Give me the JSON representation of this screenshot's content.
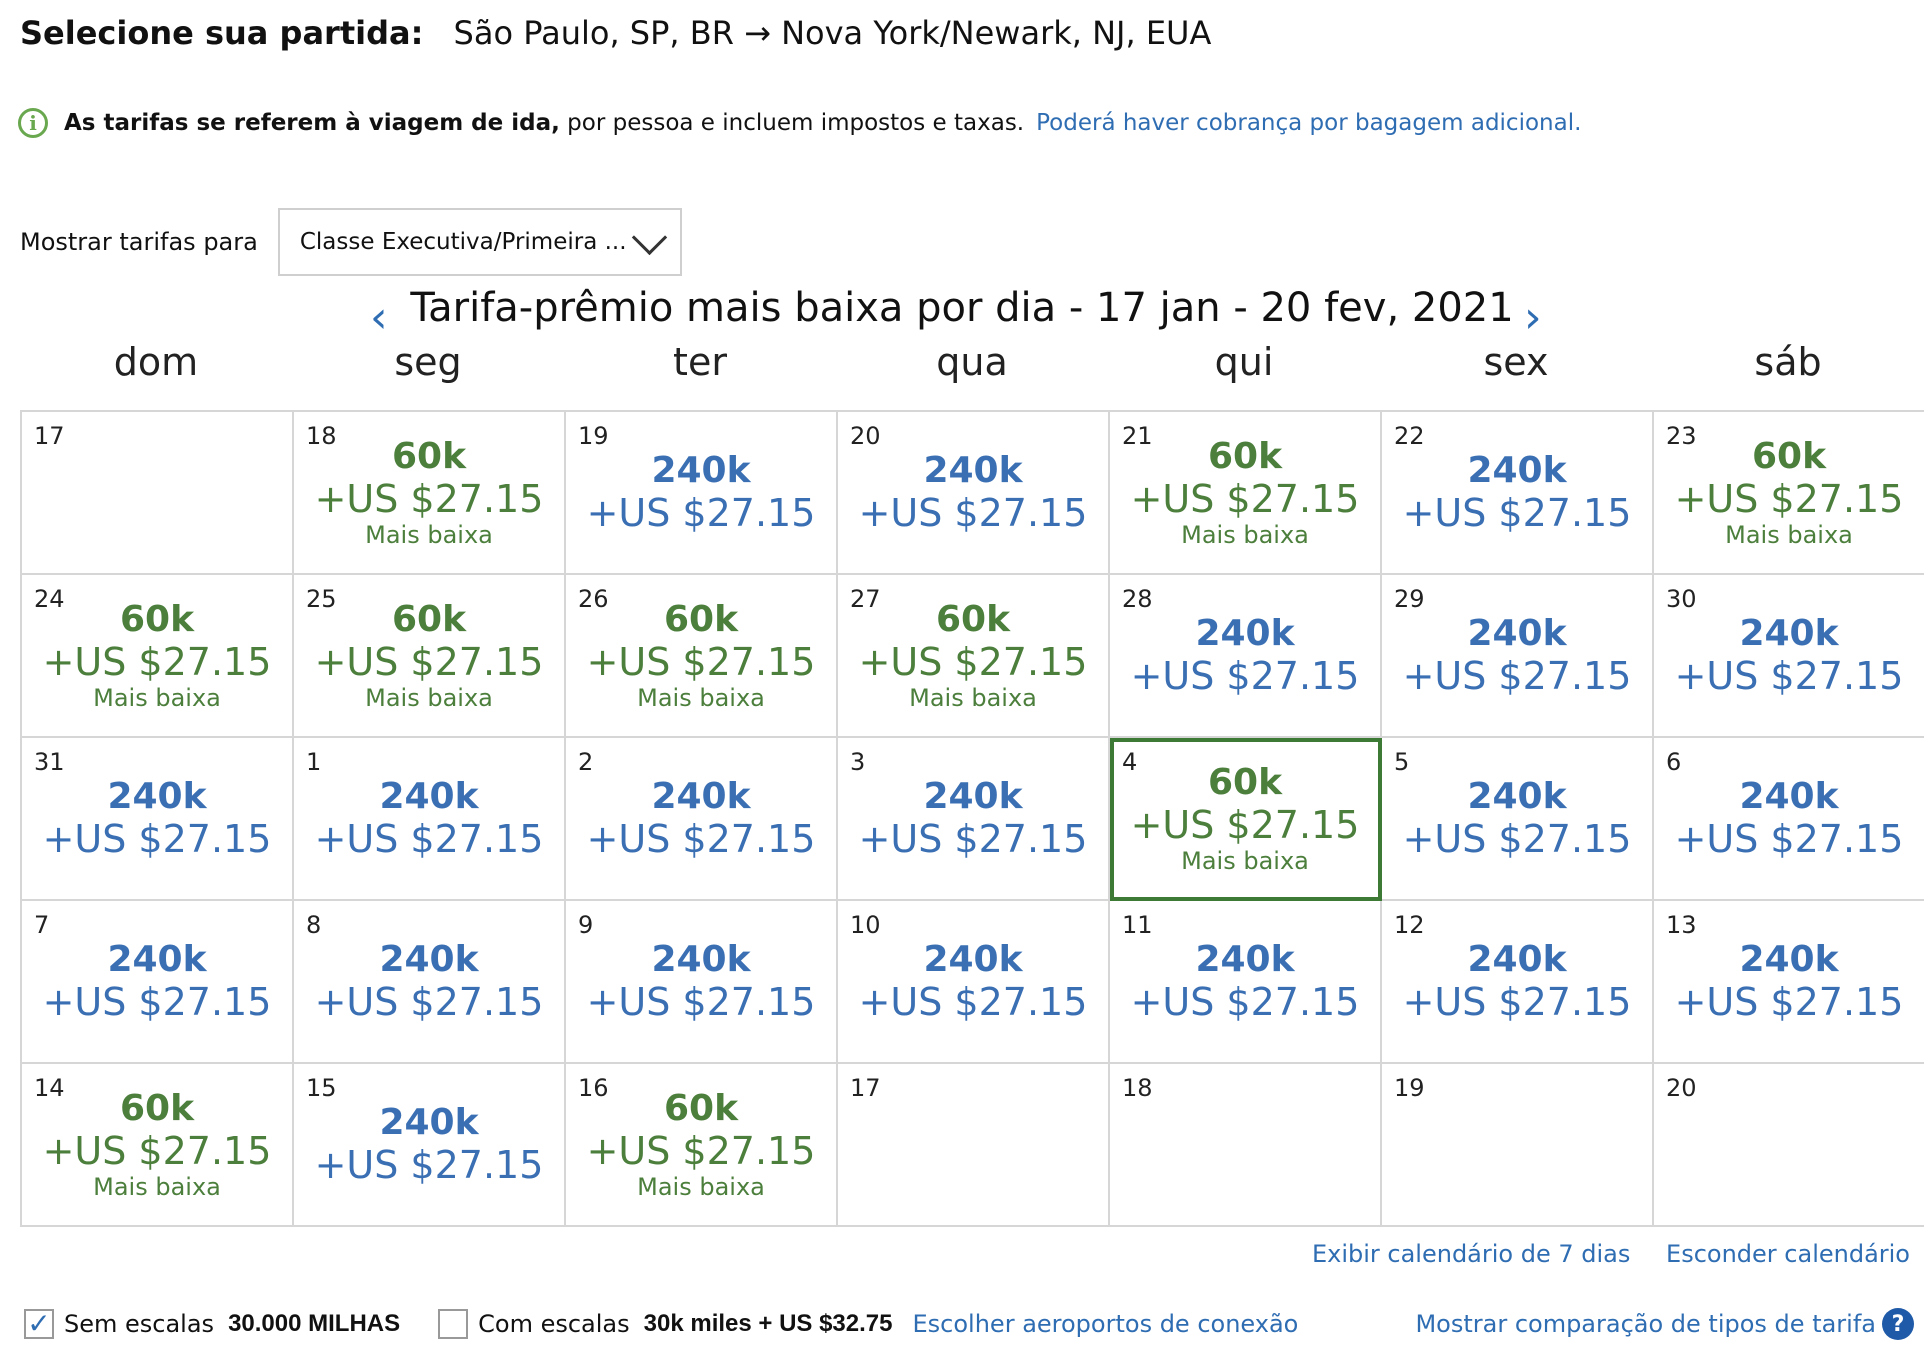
{
  "header": {
    "label": "Selecione sua partida:",
    "route": "São Paulo, SP, BR → Nova York/Newark, NJ, EUA"
  },
  "info": {
    "bold_text": "As tarifas se referem à viagem de ida,",
    "text": "por pessoa e incluem impostos e taxas.",
    "link": "Poderá haver cobrança por bagagem adicional."
  },
  "filter": {
    "label": "Mostrar tarifas para",
    "selected": "Classe Executiva/Primeira ..."
  },
  "calendar": {
    "title": "Tarifa-prêmio mais baixa por dia - 17 jan - 20 fev, 2021",
    "prev": "‹",
    "next": "›",
    "weekdays": [
      "dom",
      "seg",
      "ter",
      "qua",
      "qui",
      "sex",
      "sáb"
    ],
    "lowest_label": "Mais baixa",
    "selected_day": "4",
    "days": [
      {
        "day": "17"
      },
      {
        "day": "18",
        "miles": "60k",
        "cash": "+US $27.15",
        "lowest": true
      },
      {
        "day": "19",
        "miles": "240k",
        "cash": "+US $27.15"
      },
      {
        "day": "20",
        "miles": "240k",
        "cash": "+US $27.15"
      },
      {
        "day": "21",
        "miles": "60k",
        "cash": "+US $27.15",
        "lowest": true
      },
      {
        "day": "22",
        "miles": "240k",
        "cash": "+US $27.15"
      },
      {
        "day": "23",
        "miles": "60k",
        "cash": "+US $27.15",
        "lowest": true
      },
      {
        "day": "24",
        "miles": "60k",
        "cash": "+US $27.15",
        "lowest": true
      },
      {
        "day": "25",
        "miles": "60k",
        "cash": "+US $27.15",
        "lowest": true
      },
      {
        "day": "26",
        "miles": "60k",
        "cash": "+US $27.15",
        "lowest": true
      },
      {
        "day": "27",
        "miles": "60k",
        "cash": "+US $27.15",
        "lowest": true
      },
      {
        "day": "28",
        "miles": "240k",
        "cash": "+US $27.15"
      },
      {
        "day": "29",
        "miles": "240k",
        "cash": "+US $27.15"
      },
      {
        "day": "30",
        "miles": "240k",
        "cash": "+US $27.15"
      },
      {
        "day": "31",
        "miles": "240k",
        "cash": "+US $27.15"
      },
      {
        "day": "1",
        "miles": "240k",
        "cash": "+US $27.15"
      },
      {
        "day": "2",
        "miles": "240k",
        "cash": "+US $27.15"
      },
      {
        "day": "3",
        "miles": "240k",
        "cash": "+US $27.15"
      },
      {
        "day": "4",
        "miles": "60k",
        "cash": "+US $27.15",
        "lowest": true,
        "selected": true
      },
      {
        "day": "5",
        "miles": "240k",
        "cash": "+US $27.15"
      },
      {
        "day": "6",
        "miles": "240k",
        "cash": "+US $27.15"
      },
      {
        "day": "7",
        "miles": "240k",
        "cash": "+US $27.15"
      },
      {
        "day": "8",
        "miles": "240k",
        "cash": "+US $27.15"
      },
      {
        "day": "9",
        "miles": "240k",
        "cash": "+US $27.15"
      },
      {
        "day": "10",
        "miles": "240k",
        "cash": "+US $27.15"
      },
      {
        "day": "11",
        "miles": "240k",
        "cash": "+US $27.15"
      },
      {
        "day": "12",
        "miles": "240k",
        "cash": "+US $27.15"
      },
      {
        "day": "13",
        "miles": "240k",
        "cash": "+US $27.15"
      },
      {
        "day": "14",
        "miles": "60k",
        "cash": "+US $27.15",
        "lowest": true
      },
      {
        "day": "15",
        "miles": "240k",
        "cash": "+US $27.15"
      },
      {
        "day": "16",
        "miles": "60k",
        "cash": "+US $27.15",
        "lowest": true
      },
      {
        "day": "17"
      },
      {
        "day": "18"
      },
      {
        "day": "19"
      },
      {
        "day": "20"
      }
    ]
  },
  "links": {
    "seven_day": "Exibir calendário de 7 dias",
    "hide": "Esconder calendário"
  },
  "options": {
    "nonstop_label": "Sem escalas",
    "nonstop_checked": true,
    "nonstop_price": "30.000 MILHAS",
    "connect_label": "Com escalas",
    "connect_checked": false,
    "connect_price": "30k miles + US $32.75",
    "connect_link": "Escolher aeroportos de conexão",
    "compare_link": "Mostrar comparação de tipos de tarifa",
    "help": "?"
  },
  "colors": {
    "lowest": "#4c7f3c",
    "normal": "#3a6fb3",
    "link": "#2f6db3"
  }
}
